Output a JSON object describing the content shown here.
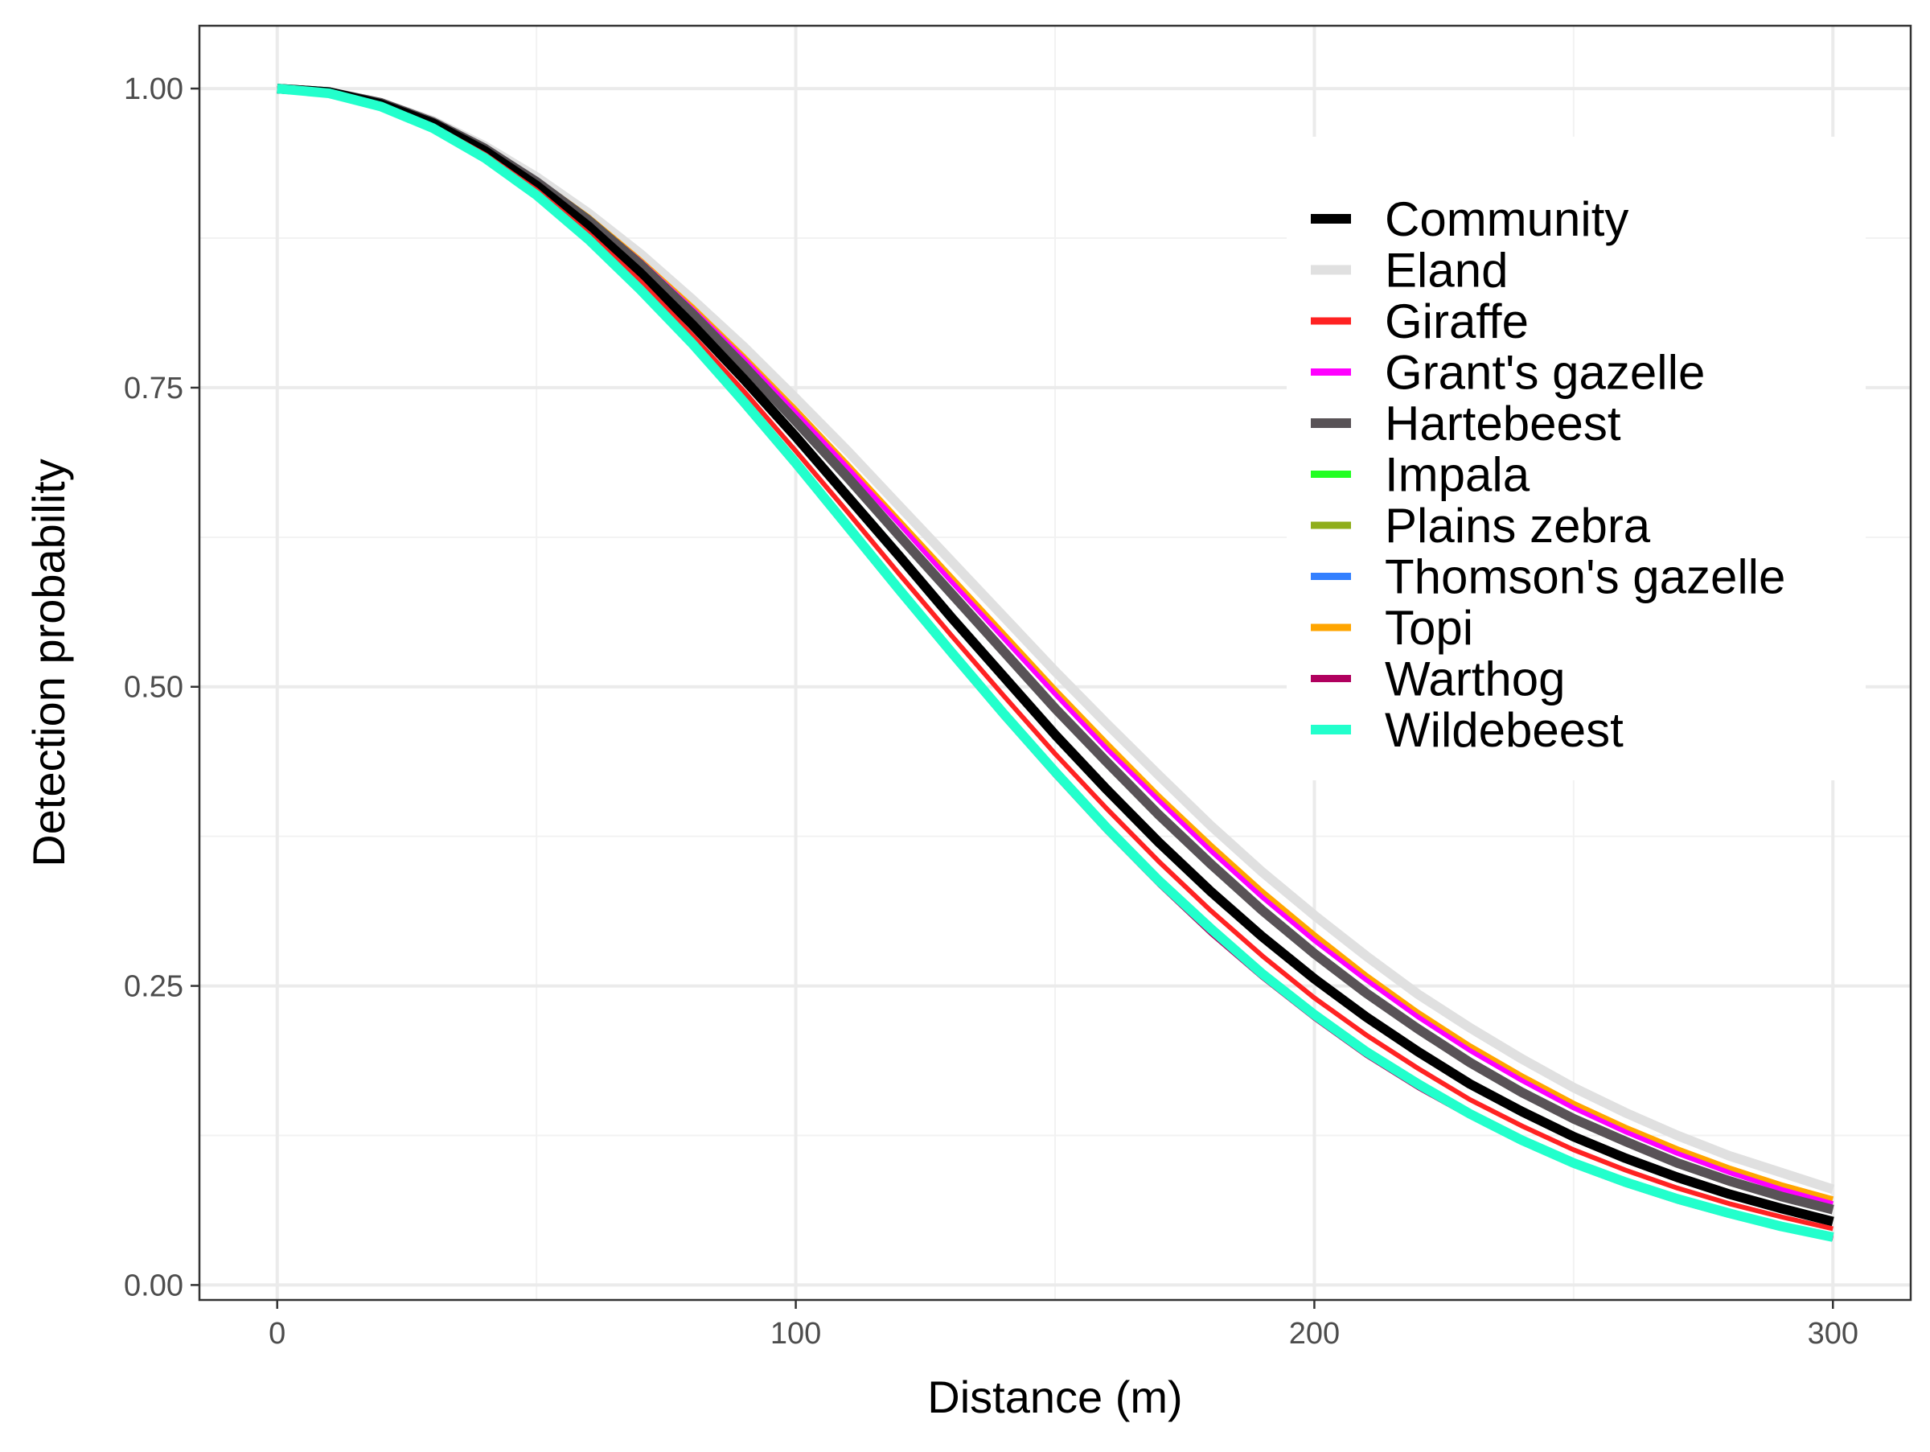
{
  "chart_data": {
    "type": "line",
    "title": "",
    "xlabel": "Distance (m)",
    "ylabel": "Detection probability",
    "xlim": [
      -15,
      315
    ],
    "ylim": [
      -0.0125,
      1.0525
    ],
    "x_ticks": [
      0,
      100,
      200,
      300
    ],
    "x_tick_labels": [
      "0",
      "100",
      "200",
      "300"
    ],
    "y_ticks": [
      0,
      0.25,
      0.5,
      0.75,
      1
    ],
    "y_tick_labels": [
      "0.00",
      "0.25",
      "0.50",
      "0.75",
      "1.00"
    ],
    "grid": true,
    "legend_position": "top-right, inside plot",
    "x": [
      0,
      10,
      20,
      30,
      40,
      50,
      60,
      70,
      80,
      90,
      100,
      110,
      120,
      130,
      140,
      150,
      160,
      170,
      180,
      190,
      200,
      210,
      220,
      230,
      240,
      250,
      260,
      270,
      280,
      290,
      300
    ],
    "series": [
      {
        "name": "Eland",
        "color": "#e0e0e0",
        "emphasis": "thick",
        "values": [
          1.0,
          0.997,
          0.988,
          0.973,
          0.952,
          0.926,
          0.896,
          0.862,
          0.824,
          0.784,
          0.741,
          0.697,
          0.651,
          0.605,
          0.559,
          0.513,
          0.469,
          0.426,
          0.384,
          0.345,
          0.309,
          0.275,
          0.243,
          0.215,
          0.189,
          0.165,
          0.144,
          0.125,
          0.108,
          0.094,
          0.08
        ]
      },
      {
        "name": "Topi",
        "color": "#ffa500",
        "values": [
          1.0,
          0.997,
          0.988,
          0.973,
          0.951,
          0.924,
          0.893,
          0.857,
          0.818,
          0.776,
          0.732,
          0.686,
          0.639,
          0.592,
          0.545,
          0.498,
          0.453,
          0.409,
          0.368,
          0.329,
          0.293,
          0.259,
          0.228,
          0.2,
          0.175,
          0.152,
          0.132,
          0.114,
          0.098,
          0.084,
          0.072
        ]
      },
      {
        "name": "Grant's gazelle",
        "color": "#ff00ff",
        "values": [
          1.0,
          0.997,
          0.988,
          0.972,
          0.951,
          0.924,
          0.892,
          0.856,
          0.816,
          0.774,
          0.729,
          0.683,
          0.636,
          0.588,
          0.541,
          0.494,
          0.448,
          0.405,
          0.363,
          0.324,
          0.288,
          0.255,
          0.224,
          0.196,
          0.171,
          0.148,
          0.128,
          0.11,
          0.094,
          0.08,
          0.068
        ]
      },
      {
        "name": "Hartebeest",
        "color": "#595357",
        "emphasis": "thick",
        "values": [
          1.0,
          0.997,
          0.988,
          0.972,
          0.95,
          0.922,
          0.89,
          0.853,
          0.812,
          0.768,
          0.722,
          0.675,
          0.626,
          0.578,
          0.53,
          0.482,
          0.437,
          0.393,
          0.352,
          0.313,
          0.277,
          0.244,
          0.214,
          0.186,
          0.161,
          0.139,
          0.12,
          0.102,
          0.087,
          0.074,
          0.063
        ]
      },
      {
        "name": "Community",
        "color": "#000000",
        "emphasis": "thick",
        "values": [
          1.0,
          0.997,
          0.987,
          0.971,
          0.948,
          0.919,
          0.885,
          0.846,
          0.803,
          0.757,
          0.709,
          0.659,
          0.609,
          0.558,
          0.509,
          0.46,
          0.414,
          0.37,
          0.329,
          0.291,
          0.256,
          0.224,
          0.195,
          0.168,
          0.145,
          0.124,
          0.106,
          0.09,
          0.076,
          0.064,
          0.053
        ]
      },
      {
        "name": "Giraffe",
        "color": "#ff2222",
        "values": [
          1.0,
          0.996,
          0.986,
          0.969,
          0.945,
          0.915,
          0.879,
          0.839,
          0.794,
          0.747,
          0.697,
          0.646,
          0.594,
          0.543,
          0.493,
          0.444,
          0.398,
          0.354,
          0.313,
          0.275,
          0.24,
          0.209,
          0.181,
          0.155,
          0.133,
          0.113,
          0.096,
          0.081,
          0.068,
          0.057,
          0.047
        ]
      },
      {
        "name": "Plains zebra",
        "color": "#8fae1b",
        "values": [
          1.0,
          0.996,
          0.985,
          0.967,
          0.942,
          0.911,
          0.874,
          0.832,
          0.786,
          0.737,
          0.686,
          0.633,
          0.58,
          0.528,
          0.477,
          0.428,
          0.381,
          0.337,
          0.297,
          0.259,
          0.225,
          0.194,
          0.167,
          0.142,
          0.121,
          0.102,
          0.086,
          0.072,
          0.06,
          0.049,
          0.04
        ]
      },
      {
        "name": "Impala",
        "color": "#22ff22",
        "values": [
          1.0,
          0.996,
          0.985,
          0.967,
          0.942,
          0.911,
          0.874,
          0.832,
          0.787,
          0.738,
          0.687,
          0.634,
          0.582,
          0.53,
          0.479,
          0.43,
          0.383,
          0.339,
          0.299,
          0.261,
          0.227,
          0.196,
          0.168,
          0.144,
          0.122,
          0.103,
          0.087,
          0.073,
          0.061,
          0.05,
          0.041
        ]
      },
      {
        "name": "Thomson's gazelle",
        "color": "#3380ff",
        "values": [
          1.0,
          0.996,
          0.985,
          0.967,
          0.942,
          0.911,
          0.874,
          0.833,
          0.787,
          0.738,
          0.687,
          0.635,
          0.582,
          0.53,
          0.479,
          0.43,
          0.383,
          0.339,
          0.299,
          0.261,
          0.227,
          0.196,
          0.168,
          0.143,
          0.122,
          0.103,
          0.087,
          0.073,
          0.061,
          0.05,
          0.041
        ]
      },
      {
        "name": "Warthog",
        "color": "#b0005e",
        "values": [
          1.0,
          0.996,
          0.985,
          0.966,
          0.941,
          0.91,
          0.873,
          0.831,
          0.785,
          0.735,
          0.684,
          0.631,
          0.578,
          0.526,
          0.475,
          0.426,
          0.379,
          0.335,
          0.294,
          0.257,
          0.223,
          0.192,
          0.165,
          0.141,
          0.119,
          0.1,
          0.084,
          0.07,
          0.058,
          0.048,
          0.039
        ]
      },
      {
        "name": "Wildebeest",
        "color": "#22ffcc",
        "emphasis": "thick",
        "values": [
          1.0,
          0.996,
          0.985,
          0.967,
          0.942,
          0.911,
          0.874,
          0.832,
          0.787,
          0.738,
          0.687,
          0.634,
          0.581,
          0.529,
          0.478,
          0.429,
          0.382,
          0.338,
          0.298,
          0.26,
          0.226,
          0.195,
          0.168,
          0.143,
          0.121,
          0.102,
          0.086,
          0.072,
          0.06,
          0.049,
          0.04
        ]
      }
    ],
    "legend_order": [
      "Community",
      "Eland",
      "Giraffe",
      "Grant's gazelle",
      "Hartebeest",
      "Impala",
      "Plains zebra",
      "Thomson's gazelle",
      "Topi",
      "Warthog",
      "Wildebeest"
    ]
  }
}
